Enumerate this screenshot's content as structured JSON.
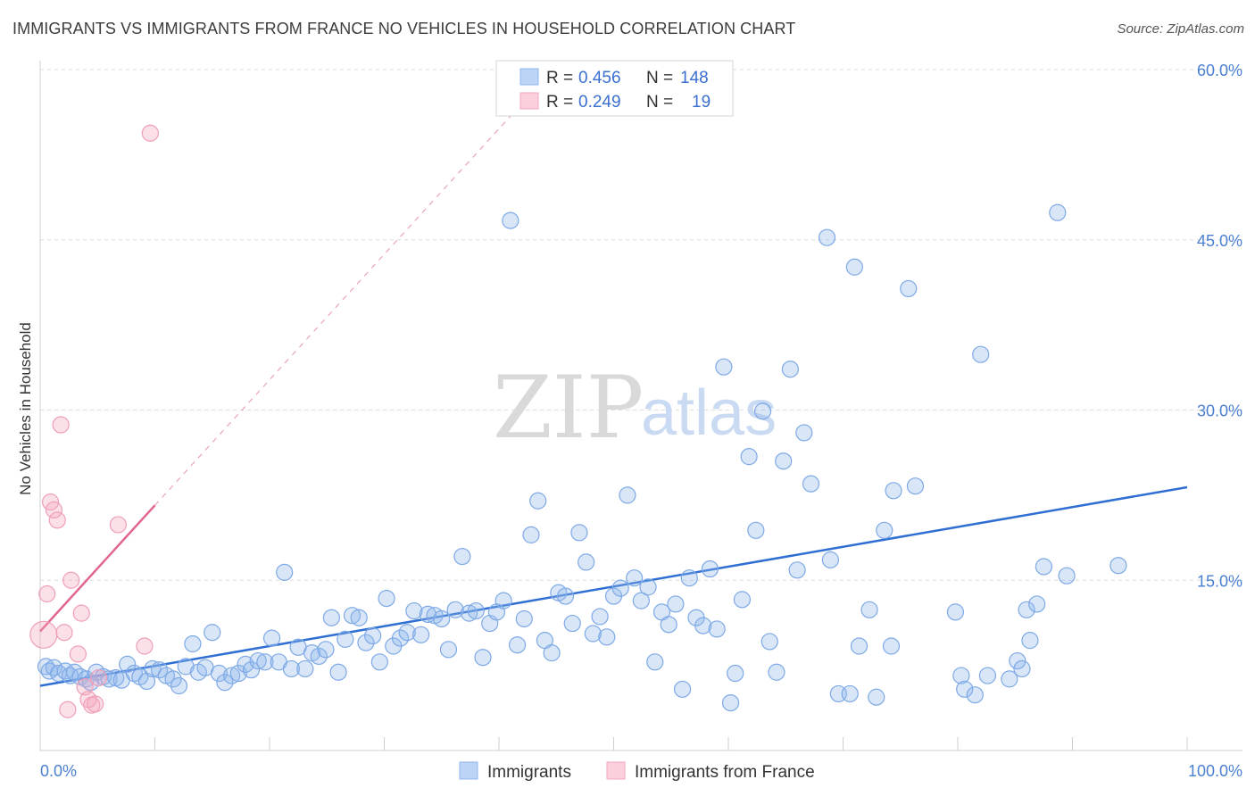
{
  "header": {
    "title": "IMMIGRANTS VS IMMIGRANTS FROM FRANCE NO VEHICLES IN HOUSEHOLD CORRELATION CHART",
    "source": "Source: ZipAtlas.com"
  },
  "watermark": {
    "zip": "ZIP",
    "atlas": "atlas"
  },
  "legend_box": {
    "rows": [
      {
        "r_label": "R = ",
        "r_value": "0.456",
        "n_label": "N = ",
        "n_value": "148",
        "color": "#8fb6ec"
      },
      {
        "r_label": "R = ",
        "r_value": "0.249",
        "n_label": "N = ",
        "n_value": "19",
        "color": "#f4a6bd"
      }
    ]
  },
  "bottom_legend": [
    {
      "label": "Immigrants",
      "color": "#8fb6ec"
    },
    {
      "label": "Immigrants from France",
      "color": "#f4a6bd"
    }
  ],
  "chart_data": {
    "type": "scatter",
    "title": "IMMIGRANTS VS IMMIGRANTS FROM FRANCE NO VEHICLES IN HOUSEHOLD CORRELATION CHART",
    "xlabel": "",
    "ylabel": "No Vehicles in Household",
    "xlim": [
      0,
      100
    ],
    "ylim": [
      0,
      64
    ],
    "x_tick_labels": [
      "0.0%",
      "100.0%"
    ],
    "y_ticks": [
      15,
      30,
      45,
      60
    ],
    "y_tick_labels": [
      "15.0%",
      "30.0%",
      "45.0%",
      "60.0%"
    ],
    "grid": true,
    "legend": "top-center",
    "series": [
      {
        "name": "Immigrants",
        "color": "#8fb6ec",
        "trend": {
          "x": [
            0,
            100
          ],
          "y": [
            5.7,
            23.2
          ],
          "color": "#2f6fd3"
        },
        "points": [
          [
            0.5,
            7.4
          ],
          [
            0.8,
            7.0
          ],
          [
            1.2,
            7.3
          ],
          [
            1.6,
            6.8
          ],
          [
            2.2,
            7.0
          ],
          [
            2.6,
            6.6
          ],
          [
            3.0,
            6.9
          ],
          [
            3.5,
            6.5
          ],
          [
            4.0,
            6.3
          ],
          [
            4.4,
            6.0
          ],
          [
            4.9,
            6.9
          ],
          [
            5.5,
            6.5
          ],
          [
            6.0,
            6.3
          ],
          [
            6.6,
            6.4
          ],
          [
            7.1,
            6.2
          ],
          [
            7.6,
            7.6
          ],
          [
            8.2,
            6.8
          ],
          [
            8.7,
            6.5
          ],
          [
            9.3,
            6.1
          ],
          [
            9.8,
            7.2
          ],
          [
            10.4,
            7.1
          ],
          [
            11.0,
            6.6
          ],
          [
            11.6,
            6.3
          ],
          [
            12.1,
            5.7
          ],
          [
            12.7,
            7.4
          ],
          [
            13.3,
            9.4
          ],
          [
            13.8,
            6.9
          ],
          [
            14.4,
            7.3
          ],
          [
            15.0,
            10.4
          ],
          [
            15.6,
            6.8
          ],
          [
            16.1,
            6.0
          ],
          [
            16.7,
            6.6
          ],
          [
            17.3,
            6.8
          ],
          [
            17.9,
            7.6
          ],
          [
            18.4,
            7.1
          ],
          [
            19.0,
            7.9
          ],
          [
            19.6,
            7.8
          ],
          [
            20.2,
            9.9
          ],
          [
            20.8,
            7.8
          ],
          [
            21.3,
            15.7
          ],
          [
            21.9,
            7.2
          ],
          [
            22.5,
            9.1
          ],
          [
            23.1,
            7.2
          ],
          [
            23.7,
            8.6
          ],
          [
            24.3,
            8.3
          ],
          [
            24.9,
            8.9
          ],
          [
            25.4,
            11.7
          ],
          [
            26.0,
            6.9
          ],
          [
            26.6,
            9.8
          ],
          [
            27.2,
            11.9
          ],
          [
            27.8,
            11.7
          ],
          [
            28.4,
            9.5
          ],
          [
            29.0,
            10.1
          ],
          [
            29.6,
            7.8
          ],
          [
            30.2,
            13.4
          ],
          [
            30.8,
            9.2
          ],
          [
            31.4,
            9.9
          ],
          [
            32.0,
            10.4
          ],
          [
            32.6,
            12.3
          ],
          [
            33.2,
            10.2
          ],
          [
            33.8,
            12.0
          ],
          [
            34.4,
            11.9
          ],
          [
            35.0,
            11.6
          ],
          [
            35.6,
            8.9
          ],
          [
            36.2,
            12.4
          ],
          [
            36.8,
            17.1
          ],
          [
            37.4,
            12.1
          ],
          [
            38.0,
            12.3
          ],
          [
            38.6,
            8.2
          ],
          [
            39.2,
            11.2
          ],
          [
            39.8,
            12.2
          ],
          [
            40.4,
            13.2
          ],
          [
            41.0,
            46.7
          ],
          [
            41.6,
            9.3
          ],
          [
            42.2,
            11.6
          ],
          [
            42.8,
            19.0
          ],
          [
            43.4,
            22.0
          ],
          [
            44.0,
            9.7
          ],
          [
            44.6,
            8.6
          ],
          [
            45.2,
            13.9
          ],
          [
            45.8,
            13.6
          ],
          [
            46.4,
            11.2
          ],
          [
            47.0,
            19.2
          ],
          [
            47.6,
            16.6
          ],
          [
            48.2,
            10.3
          ],
          [
            48.8,
            11.8
          ],
          [
            49.4,
            10.0
          ],
          [
            50.0,
            13.6
          ],
          [
            50.6,
            14.3
          ],
          [
            51.2,
            22.5
          ],
          [
            51.8,
            15.2
          ],
          [
            52.4,
            13.2
          ],
          [
            53.0,
            14.4
          ],
          [
            53.6,
            7.8
          ],
          [
            54.2,
            12.2
          ],
          [
            54.8,
            11.1
          ],
          [
            55.4,
            12.9
          ],
          [
            56.0,
            5.4
          ],
          [
            56.6,
            15.2
          ],
          [
            57.2,
            11.7
          ],
          [
            57.8,
            11.0
          ],
          [
            58.4,
            16.0
          ],
          [
            59.0,
            10.7
          ],
          [
            59.6,
            33.8
          ],
          [
            60.2,
            4.2
          ],
          [
            60.6,
            6.8
          ],
          [
            61.2,
            13.3
          ],
          [
            61.8,
            25.9
          ],
          [
            62.4,
            19.4
          ],
          [
            63.0,
            29.9
          ],
          [
            63.6,
            9.6
          ],
          [
            64.2,
            6.9
          ],
          [
            64.8,
            25.5
          ],
          [
            65.4,
            33.6
          ],
          [
            66.0,
            15.9
          ],
          [
            66.6,
            28.0
          ],
          [
            67.2,
            23.5
          ],
          [
            68.6,
            45.2
          ],
          [
            68.9,
            16.8
          ],
          [
            69.6,
            5.0
          ],
          [
            70.6,
            5.0
          ],
          [
            71.0,
            42.6
          ],
          [
            71.4,
            9.2
          ],
          [
            72.3,
            12.4
          ],
          [
            72.9,
            4.7
          ],
          [
            73.6,
            19.4
          ],
          [
            74.2,
            9.2
          ],
          [
            74.4,
            22.9
          ],
          [
            75.7,
            40.7
          ],
          [
            76.3,
            23.3
          ],
          [
            79.8,
            12.2
          ],
          [
            80.3,
            6.6
          ],
          [
            80.6,
            5.4
          ],
          [
            81.5,
            4.9
          ],
          [
            82.0,
            34.9
          ],
          [
            82.6,
            6.6
          ],
          [
            84.5,
            6.3
          ],
          [
            85.2,
            7.9
          ],
          [
            85.6,
            7.2
          ],
          [
            86.0,
            12.4
          ],
          [
            86.3,
            9.7
          ],
          [
            86.9,
            12.9
          ],
          [
            87.5,
            16.2
          ],
          [
            89.5,
            15.4
          ],
          [
            94.0,
            16.3
          ],
          [
            88.7,
            47.4
          ]
        ]
      },
      {
        "name": "Immigrants from France",
        "color": "#f4a6bd",
        "trend": {
          "x": [
            0,
            10
          ],
          "y": [
            10.5,
            21.6
          ],
          "color": "#e0668f",
          "extend_to_x": 42,
          "extend_to_y": 57
        },
        "points": [
          [
            0.3,
            10.2
          ],
          [
            0.6,
            13.8
          ],
          [
            0.9,
            21.9
          ],
          [
            1.2,
            21.2
          ],
          [
            1.5,
            20.3
          ],
          [
            1.8,
            28.7
          ],
          [
            2.1,
            10.4
          ],
          [
            2.4,
            3.6
          ],
          [
            2.7,
            15.0
          ],
          [
            3.3,
            8.5
          ],
          [
            3.6,
            12.1
          ],
          [
            3.9,
            5.6
          ],
          [
            4.2,
            4.5
          ],
          [
            4.5,
            4.0
          ],
          [
            4.8,
            4.1
          ],
          [
            5.1,
            6.4
          ],
          [
            6.8,
            19.9
          ],
          [
            9.1,
            9.2
          ],
          [
            9.6,
            54.4
          ]
        ]
      }
    ]
  }
}
